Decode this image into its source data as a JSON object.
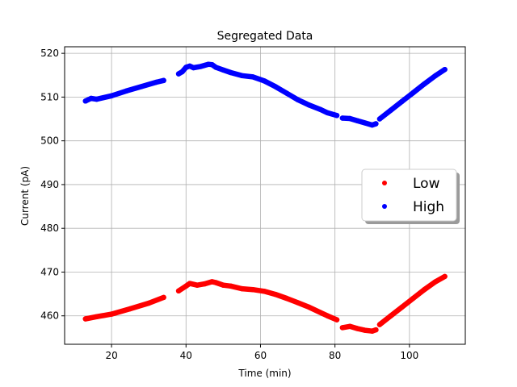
{
  "chart_data": {
    "type": "scatter",
    "title": "Segregated Data",
    "xlabel": "Time (min)",
    "ylabel": "Current (pA)",
    "xlim": [
      7.4,
      115
    ],
    "ylim": [
      453.5,
      521.5
    ],
    "xticks": [
      20,
      40,
      60,
      80,
      100
    ],
    "yticks": [
      460,
      470,
      480,
      490,
      500,
      510,
      520
    ],
    "grid": true,
    "legend_position": "center-right",
    "series": [
      {
        "name": "Low",
        "color": "#ff0000",
        "segments": [
          {
            "x": [
              13,
              16,
              20,
              25,
              30,
              34
            ],
            "y": [
              459.3,
              459.8,
              460.4,
              461.6,
              462.9,
              464.2
            ]
          },
          {
            "x": [
              38,
              40,
              41,
              43,
              45,
              47,
              48,
              50,
              52,
              55,
              58,
              61,
              64,
              67,
              70,
              73,
              76,
              78,
              80.5
            ],
            "y": [
              465.7,
              466.8,
              467.4,
              467.0,
              467.3,
              467.8,
              467.6,
              467.0,
              466.8,
              466.2,
              466.0,
              465.6,
              464.9,
              464.0,
              463.0,
              462.0,
              460.8,
              460.0,
              459.1
            ]
          },
          {
            "x": [
              82,
              84,
              86,
              88,
              90,
              91
            ],
            "y": [
              457.3,
              457.6,
              457.1,
              456.7,
              456.5,
              456.8
            ]
          },
          {
            "x": [
              92,
              95,
              98,
              101,
              104,
              107,
              109.5
            ],
            "y": [
              458.0,
              460.0,
              462.0,
              464.0,
              466.0,
              467.8,
              469.0
            ]
          }
        ]
      },
      {
        "name": "High",
        "color": "#0000ff",
        "segments": [
          {
            "x": [
              13,
              14.5,
              16,
              20,
              24,
              28,
              32,
              34
            ],
            "y": [
              509.1,
              509.7,
              509.5,
              510.3,
              511.4,
              512.4,
              513.4,
              513.8
            ]
          },
          {
            "x": [
              38,
              39,
              40,
              41,
              42,
              44,
              46,
              47,
              48,
              50,
              52,
              55,
              58,
              61,
              64,
              67,
              70,
              73,
              76,
              78,
              80.5
            ],
            "y": [
              515.3,
              515.8,
              516.8,
              517.1,
              516.7,
              517.0,
              517.5,
              517.4,
              516.8,
              516.2,
              515.6,
              514.9,
              514.6,
              513.7,
              512.4,
              510.9,
              509.4,
              508.2,
              507.2,
              506.4,
              505.8
            ]
          },
          {
            "x": [
              82,
              84,
              86,
              88,
              90,
              91
            ],
            "y": [
              505.2,
              505.1,
              504.6,
              504.1,
              503.6,
              503.9
            ]
          },
          {
            "x": [
              92,
              95,
              98,
              101,
              104,
              107,
              109.5
            ],
            "y": [
              505.0,
              507.0,
              509.0,
              511.0,
              513.0,
              514.9,
              516.3
            ]
          }
        ]
      }
    ]
  }
}
